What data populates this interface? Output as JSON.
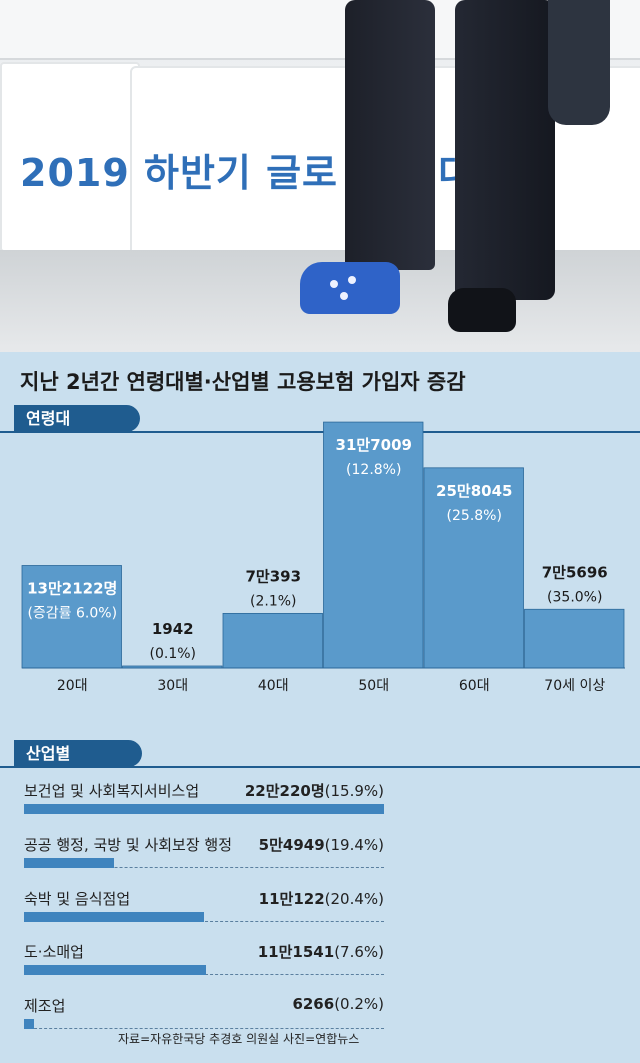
{
  "photo": {
    "banner_text": "2019 하반기 글로     일자    대전"
  },
  "title": "지난 2년간 연령대별·산업별 고용보험 가입자 증감",
  "sections": {
    "age_label": "연령대",
    "industry_label": "산업별"
  },
  "chart_data": [
    {
      "type": "bar",
      "title": "연령대",
      "categories": [
        "20대",
        "30대",
        "40대",
        "50대",
        "60대",
        "70세 이상"
      ],
      "values": [
        132122,
        1942,
        70393,
        317009,
        258045,
        75696
      ],
      "value_labels": [
        "13만2122명",
        "1942",
        "7만393",
        "31만7009",
        "25만8045",
        "7만5696"
      ],
      "rate_labels": [
        "(증감률 6.0%)",
        "(0.1%)",
        "(2.1%)",
        "(12.8%)",
        "(25.8%)",
        "(35.0%)"
      ],
      "ylim": [
        0,
        330000
      ],
      "colors": {
        "bar": "#5a9acb",
        "bar_edge": "#2a6799",
        "label_in": "#ffffff",
        "label_out": "#1b1b1b"
      }
    },
    {
      "type": "bar",
      "title": "산업별",
      "categories": [
        "보건업 및 사회복지서비스업",
        "공공 행정, 국방 및 사회보장 행정",
        "숙박 및 음식점업",
        "도·소매업",
        "제조업"
      ],
      "values": [
        220220,
        54949,
        110122,
        111541,
        6266
      ],
      "value_labels": [
        "22만220명",
        "5만4949",
        "11만122",
        "11만1541",
        "6266"
      ],
      "rate_labels": [
        "(15.9%)",
        "(19.4%)",
        "(20.4%)",
        "(7.6%)",
        "(0.2%)"
      ],
      "xlim": [
        0,
        220220
      ],
      "colors": {
        "bar": "#3f84be"
      }
    }
  ],
  "source": "자료=자유한국당 추경호 의원실   사진=연합뉴스"
}
